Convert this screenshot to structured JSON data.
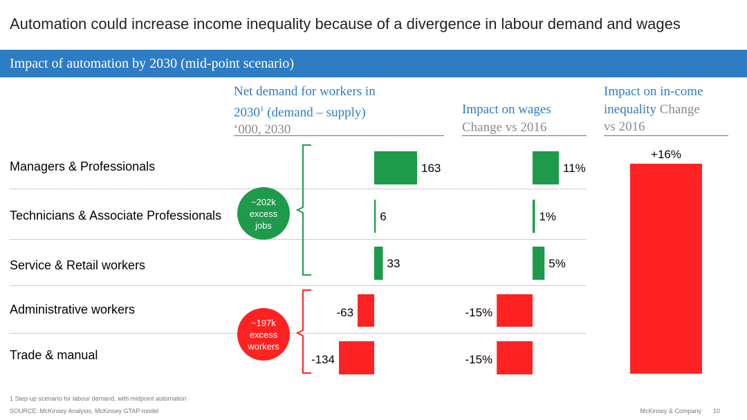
{
  "title": "Automation could increase income inequality because of a divergence in labour demand and wages",
  "banner": "Impact of automation by 2030 (mid-point scenario)",
  "headers": {
    "demand_line1": "Net demand for workers in",
    "demand_line2a": "2030",
    "demand_sup": "1",
    "demand_line2b": " (demand – supply)",
    "demand_line3": "‘000, 2030",
    "wages_line1": "Impact on wages",
    "wages_line2": "Change vs 2016",
    "ineq_line1": "Impact on in-come",
    "ineq_line2a": "inequality",
    "ineq_line2b": " Change",
    "ineq_line3": "vs 2016"
  },
  "callouts": {
    "excess_jobs": [
      "~202k",
      "excess",
      "jobs"
    ],
    "excess_workers": [
      "~197k",
      "excess",
      "workers"
    ]
  },
  "colors": {
    "positive": "#1e9a4b",
    "negative": "#ff2222",
    "accent": "#2e7cc3"
  },
  "chart_data": [
    {
      "type": "bar",
      "title": "Net demand for workers in 2030 (demand – supply)",
      "ylabel": "‘000, 2030",
      "categories": [
        "Managers & Professionals",
        "Technicians & Associate Professionals",
        "Service & Retail workers",
        "Administrative workers",
        "Trade & manual"
      ],
      "values": [
        163,
        6,
        33,
        -63,
        -134
      ],
      "labels": [
        "163",
        "6",
        "33",
        "-63",
        "-134"
      ]
    },
    {
      "type": "bar",
      "title": "Impact on wages",
      "ylabel": "Change vs 2016",
      "categories": [
        "Managers & Professionals",
        "Technicians & Associate Professionals",
        "Service & Retail workers",
        "Administrative workers",
        "Trade & manual"
      ],
      "values": [
        11,
        1,
        5,
        -15,
        -15
      ],
      "labels": [
        "11%",
        "1%",
        "5%",
        "-15%",
        "-15%"
      ]
    },
    {
      "type": "bar",
      "title": "Impact on in-come inequality",
      "ylabel": "Change vs 2016",
      "categories": [
        ""
      ],
      "values": [
        16
      ],
      "labels": [
        "+16%"
      ]
    }
  ],
  "footnote": "1 Step-up scenario for labour demand, with midpoint automation",
  "source": "SOURCE: McKinsey Analysis, McKinsey GTAP model",
  "company": "McKinsey & Company",
  "page_number": "10"
}
